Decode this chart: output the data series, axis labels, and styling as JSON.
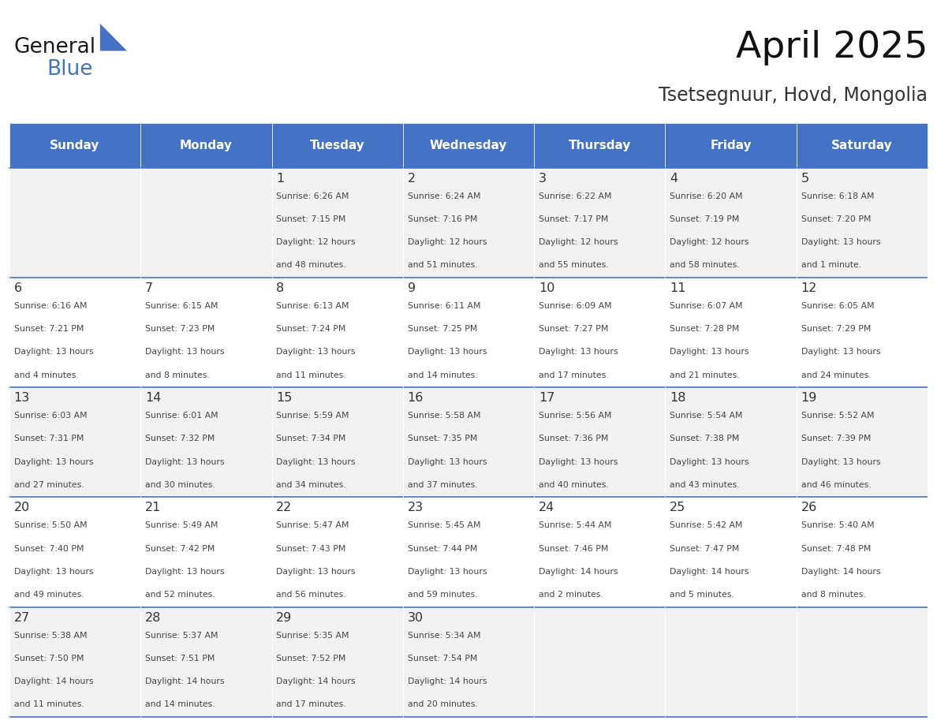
{
  "title": "April 2025",
  "subtitle": "Tsetsegnuur, Hovd, Mongolia",
  "header_bg": "#4472C4",
  "header_text_color": "#FFFFFF",
  "cell_bg_even": "#F2F2F2",
  "cell_bg_odd": "#FFFFFF",
  "grid_line_color": "#4472C4",
  "day_names": [
    "Sunday",
    "Monday",
    "Tuesday",
    "Wednesday",
    "Thursday",
    "Friday",
    "Saturday"
  ],
  "weeks": [
    [
      {
        "day": "",
        "sunrise": "",
        "sunset": "",
        "daylight": ""
      },
      {
        "day": "",
        "sunrise": "",
        "sunset": "",
        "daylight": ""
      },
      {
        "day": "1",
        "sunrise": "Sunrise: 6:26 AM",
        "sunset": "Sunset: 7:15 PM",
        "daylight": "Daylight: 12 hours\nand 48 minutes."
      },
      {
        "day": "2",
        "sunrise": "Sunrise: 6:24 AM",
        "sunset": "Sunset: 7:16 PM",
        "daylight": "Daylight: 12 hours\nand 51 minutes."
      },
      {
        "day": "3",
        "sunrise": "Sunrise: 6:22 AM",
        "sunset": "Sunset: 7:17 PM",
        "daylight": "Daylight: 12 hours\nand 55 minutes."
      },
      {
        "day": "4",
        "sunrise": "Sunrise: 6:20 AM",
        "sunset": "Sunset: 7:19 PM",
        "daylight": "Daylight: 12 hours\nand 58 minutes."
      },
      {
        "day": "5",
        "sunrise": "Sunrise: 6:18 AM",
        "sunset": "Sunset: 7:20 PM",
        "daylight": "Daylight: 13 hours\nand 1 minute."
      }
    ],
    [
      {
        "day": "6",
        "sunrise": "Sunrise: 6:16 AM",
        "sunset": "Sunset: 7:21 PM",
        "daylight": "Daylight: 13 hours\nand 4 minutes."
      },
      {
        "day": "7",
        "sunrise": "Sunrise: 6:15 AM",
        "sunset": "Sunset: 7:23 PM",
        "daylight": "Daylight: 13 hours\nand 8 minutes."
      },
      {
        "day": "8",
        "sunrise": "Sunrise: 6:13 AM",
        "sunset": "Sunset: 7:24 PM",
        "daylight": "Daylight: 13 hours\nand 11 minutes."
      },
      {
        "day": "9",
        "sunrise": "Sunrise: 6:11 AM",
        "sunset": "Sunset: 7:25 PM",
        "daylight": "Daylight: 13 hours\nand 14 minutes."
      },
      {
        "day": "10",
        "sunrise": "Sunrise: 6:09 AM",
        "sunset": "Sunset: 7:27 PM",
        "daylight": "Daylight: 13 hours\nand 17 minutes."
      },
      {
        "day": "11",
        "sunrise": "Sunrise: 6:07 AM",
        "sunset": "Sunset: 7:28 PM",
        "daylight": "Daylight: 13 hours\nand 21 minutes."
      },
      {
        "day": "12",
        "sunrise": "Sunrise: 6:05 AM",
        "sunset": "Sunset: 7:29 PM",
        "daylight": "Daylight: 13 hours\nand 24 minutes."
      }
    ],
    [
      {
        "day": "13",
        "sunrise": "Sunrise: 6:03 AM",
        "sunset": "Sunset: 7:31 PM",
        "daylight": "Daylight: 13 hours\nand 27 minutes."
      },
      {
        "day": "14",
        "sunrise": "Sunrise: 6:01 AM",
        "sunset": "Sunset: 7:32 PM",
        "daylight": "Daylight: 13 hours\nand 30 minutes."
      },
      {
        "day": "15",
        "sunrise": "Sunrise: 5:59 AM",
        "sunset": "Sunset: 7:34 PM",
        "daylight": "Daylight: 13 hours\nand 34 minutes."
      },
      {
        "day": "16",
        "sunrise": "Sunrise: 5:58 AM",
        "sunset": "Sunset: 7:35 PM",
        "daylight": "Daylight: 13 hours\nand 37 minutes."
      },
      {
        "day": "17",
        "sunrise": "Sunrise: 5:56 AM",
        "sunset": "Sunset: 7:36 PM",
        "daylight": "Daylight: 13 hours\nand 40 minutes."
      },
      {
        "day": "18",
        "sunrise": "Sunrise: 5:54 AM",
        "sunset": "Sunset: 7:38 PM",
        "daylight": "Daylight: 13 hours\nand 43 minutes."
      },
      {
        "day": "19",
        "sunrise": "Sunrise: 5:52 AM",
        "sunset": "Sunset: 7:39 PM",
        "daylight": "Daylight: 13 hours\nand 46 minutes."
      }
    ],
    [
      {
        "day": "20",
        "sunrise": "Sunrise: 5:50 AM",
        "sunset": "Sunset: 7:40 PM",
        "daylight": "Daylight: 13 hours\nand 49 minutes."
      },
      {
        "day": "21",
        "sunrise": "Sunrise: 5:49 AM",
        "sunset": "Sunset: 7:42 PM",
        "daylight": "Daylight: 13 hours\nand 52 minutes."
      },
      {
        "day": "22",
        "sunrise": "Sunrise: 5:47 AM",
        "sunset": "Sunset: 7:43 PM",
        "daylight": "Daylight: 13 hours\nand 56 minutes."
      },
      {
        "day": "23",
        "sunrise": "Sunrise: 5:45 AM",
        "sunset": "Sunset: 7:44 PM",
        "daylight": "Daylight: 13 hours\nand 59 minutes."
      },
      {
        "day": "24",
        "sunrise": "Sunrise: 5:44 AM",
        "sunset": "Sunset: 7:46 PM",
        "daylight": "Daylight: 14 hours\nand 2 minutes."
      },
      {
        "day": "25",
        "sunrise": "Sunrise: 5:42 AM",
        "sunset": "Sunset: 7:47 PM",
        "daylight": "Daylight: 14 hours\nand 5 minutes."
      },
      {
        "day": "26",
        "sunrise": "Sunrise: 5:40 AM",
        "sunset": "Sunset: 7:48 PM",
        "daylight": "Daylight: 14 hours\nand 8 minutes."
      }
    ],
    [
      {
        "day": "27",
        "sunrise": "Sunrise: 5:38 AM",
        "sunset": "Sunset: 7:50 PM",
        "daylight": "Daylight: 14 hours\nand 11 minutes."
      },
      {
        "day": "28",
        "sunrise": "Sunrise: 5:37 AM",
        "sunset": "Sunset: 7:51 PM",
        "daylight": "Daylight: 14 hours\nand 14 minutes."
      },
      {
        "day": "29",
        "sunrise": "Sunrise: 5:35 AM",
        "sunset": "Sunset: 7:52 PM",
        "daylight": "Daylight: 14 hours\nand 17 minutes."
      },
      {
        "day": "30",
        "sunrise": "Sunrise: 5:34 AM",
        "sunset": "Sunset: 7:54 PM",
        "daylight": "Daylight: 14 hours\nand 20 minutes."
      },
      {
        "day": "",
        "sunrise": "",
        "sunset": "",
        "daylight": ""
      },
      {
        "day": "",
        "sunrise": "",
        "sunset": "",
        "daylight": ""
      },
      {
        "day": "",
        "sunrise": "",
        "sunset": "",
        "daylight": ""
      }
    ]
  ],
  "logo_text_general": "General",
  "logo_text_blue": "Blue",
  "logo_triangle_color": "#4472C4"
}
